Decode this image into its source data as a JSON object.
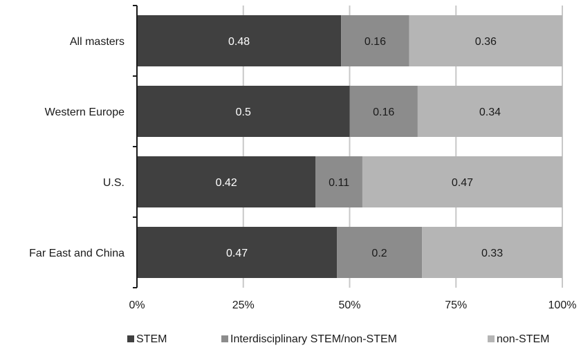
{
  "chart_data": {
    "type": "bar",
    "orientation": "horizontal",
    "stacked": true,
    "categories": [
      "All masters",
      "Western Europe",
      "U.S.",
      "Far East and China"
    ],
    "series": [
      {
        "name": "STEM",
        "values": [
          0.48,
          0.5,
          0.42,
          0.47
        ],
        "labels": [
          "0.48",
          "0.5",
          "0.42",
          "0.47"
        ],
        "color": "#404040"
      },
      {
        "name": "Interdisciplinary STEM/non-STEM",
        "values": [
          0.16,
          0.16,
          0.11,
          0.2
        ],
        "labels": [
          "0.16",
          "0.16",
          "0.11",
          "0.2"
        ],
        "color": "#8c8c8c"
      },
      {
        "name": "non-STEM",
        "values": [
          0.36,
          0.34,
          0.47,
          0.33
        ],
        "labels": [
          "0.36",
          "0.34",
          "0.47",
          "0.33"
        ],
        "color": "#b5b5b5"
      }
    ],
    "x_ticks": [
      "0%",
      "25%",
      "50%",
      "75%",
      "100%"
    ],
    "xlim": [
      0,
      1
    ],
    "grid": true,
    "legend_position": "bottom",
    "title": "",
    "xlabel": "",
    "ylabel": ""
  }
}
